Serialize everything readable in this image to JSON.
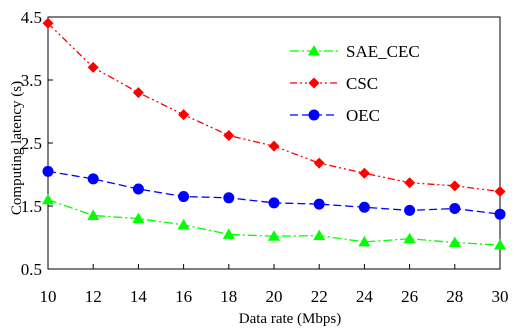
{
  "chart_data": {
    "type": "line",
    "title": "",
    "xlabel": "Data rate (Mbps)",
    "ylabel": "Computing latency (s)",
    "x": [
      10,
      12,
      14,
      16,
      18,
      20,
      22,
      24,
      26,
      28,
      30
    ],
    "xlim": [
      10,
      30
    ],
    "ylim": [
      0.5,
      4.5
    ],
    "xticks": [
      "10",
      "12",
      "14",
      "16",
      "18",
      "20",
      "22",
      "24",
      "26",
      "28",
      "30"
    ],
    "yticks": [
      "0.5",
      "1.5",
      "2.5",
      "3.5",
      "4.5"
    ],
    "grid": false,
    "legend_position": "top-right",
    "series": [
      {
        "name": "SAE_CEC",
        "color": "#00ff00",
        "marker": "triangle",
        "line_style": "dash-dot",
        "values": [
          1.6,
          1.35,
          1.3,
          1.2,
          1.05,
          1.02,
          1.03,
          0.93,
          0.98,
          0.92,
          0.88
        ]
      },
      {
        "name": "CSC",
        "color": "#ff0000",
        "marker": "diamond",
        "line_style": "dash-dot-dot",
        "values": [
          4.4,
          3.7,
          3.3,
          2.95,
          2.62,
          2.45,
          2.18,
          2.02,
          1.87,
          1.82,
          1.73
        ]
      },
      {
        "name": "OEC",
        "color": "#0000ff",
        "marker": "circle",
        "line_style": "dash",
        "values": [
          2.05,
          1.93,
          1.77,
          1.65,
          1.63,
          1.55,
          1.53,
          1.48,
          1.43,
          1.46,
          1.37
        ]
      }
    ]
  }
}
